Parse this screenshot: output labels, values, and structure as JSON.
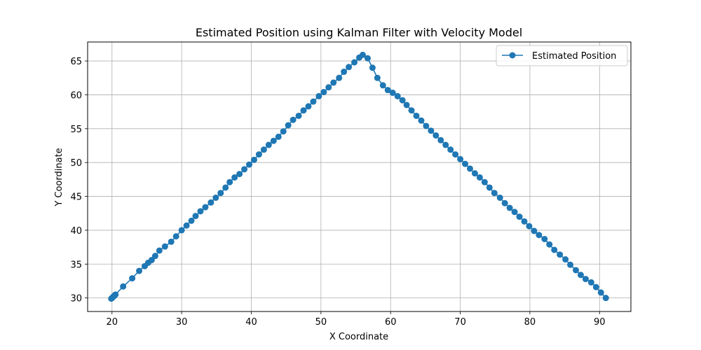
{
  "chart_data": {
    "type": "line",
    "title": "Estimated Position using Kalman Filter with Velocity Model",
    "xlabel": "X Coordinate",
    "ylabel": "Y Coordinate",
    "xlim": [
      16.5,
      94.5
    ],
    "ylim": [
      28.0,
      67.8
    ],
    "xticks": [
      20,
      30,
      40,
      50,
      60,
      70,
      80,
      90
    ],
    "yticks": [
      30,
      35,
      40,
      45,
      50,
      55,
      60,
      65
    ],
    "grid": true,
    "legend": "top-right",
    "series": [
      {
        "name": "Estimated Position",
        "color": "#1f77b4",
        "marker": "circle",
        "x": [
          19.9,
          20.0,
          20.1,
          20.2,
          20.3,
          20.4,
          20.5,
          21.6,
          22.9,
          23.9,
          24.7,
          25.2,
          25.7,
          26.2,
          26.8,
          27.6,
          28.5,
          29.2,
          30.0,
          30.7,
          31.4,
          32.0,
          32.7,
          33.4,
          34.2,
          34.9,
          35.6,
          36.3,
          36.9,
          37.6,
          38.3,
          39.0,
          39.7,
          40.4,
          41.1,
          41.8,
          42.5,
          43.2,
          43.9,
          44.6,
          45.3,
          46.0,
          46.8,
          47.5,
          48.2,
          48.9,
          49.7,
          50.4,
          51.1,
          51.8,
          52.6,
          53.3,
          54.0,
          54.8,
          55.5,
          56.0,
          56.7,
          57.4,
          58.1,
          58.9,
          59.6,
          60.3,
          61.0,
          61.7,
          62.3,
          63.0,
          63.7,
          64.4,
          65.1,
          65.8,
          66.5,
          67.2,
          67.9,
          68.6,
          69.3,
          70.0,
          70.7,
          71.4,
          72.1,
          72.8,
          73.5,
          74.2,
          74.9,
          75.7,
          76.4,
          77.1,
          77.8,
          78.5,
          79.2,
          79.9,
          80.6,
          81.3,
          82.1,
          82.8,
          83.5,
          84.3,
          85.1,
          85.8,
          86.6,
          87.3,
          88.0,
          88.8,
          89.5,
          90.2,
          90.9
        ],
        "y": [
          29.9,
          30.0,
          30.1,
          30.2,
          30.3,
          30.4,
          30.5,
          31.7,
          32.9,
          34.0,
          34.7,
          35.2,
          35.6,
          36.2,
          37.0,
          37.6,
          38.3,
          39.1,
          40.0,
          40.7,
          41.4,
          42.1,
          42.8,
          43.4,
          44.1,
          44.8,
          45.5,
          46.3,
          47.1,
          47.8,
          48.3,
          49.0,
          49.7,
          50.4,
          51.2,
          51.9,
          52.6,
          53.2,
          53.8,
          54.6,
          55.5,
          56.3,
          56.9,
          57.7,
          58.3,
          59.0,
          59.8,
          60.4,
          61.1,
          61.8,
          62.5,
          63.4,
          64.1,
          64.8,
          65.5,
          65.9,
          65.4,
          64.0,
          62.5,
          61.4,
          60.7,
          60.3,
          59.8,
          59.2,
          58.5,
          57.7,
          56.9,
          56.2,
          55.4,
          54.7,
          54.0,
          53.3,
          52.6,
          51.9,
          51.2,
          50.5,
          49.8,
          49.1,
          48.4,
          47.8,
          47.1,
          46.3,
          45.5,
          44.8,
          44.0,
          43.3,
          42.7,
          42.0,
          41.3,
          40.6,
          39.9,
          39.3,
          38.7,
          37.9,
          37.1,
          36.4,
          35.7,
          34.9,
          34.1,
          33.4,
          32.8,
          32.3,
          31.6,
          30.8,
          30.0
        ]
      }
    ]
  }
}
